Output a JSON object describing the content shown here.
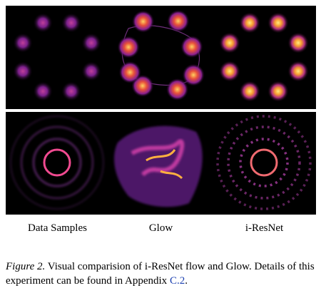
{
  "figure": {
    "labels": [
      "Data Samples",
      "Glow",
      "i-ResNet"
    ],
    "caption": {
      "label": "Figure 2.",
      "text": "Visual comparision of i-ResNet flow and Glow. Details of this experiment can be found in Appendix ",
      "link": "C.2",
      "end": "."
    }
  }
}
